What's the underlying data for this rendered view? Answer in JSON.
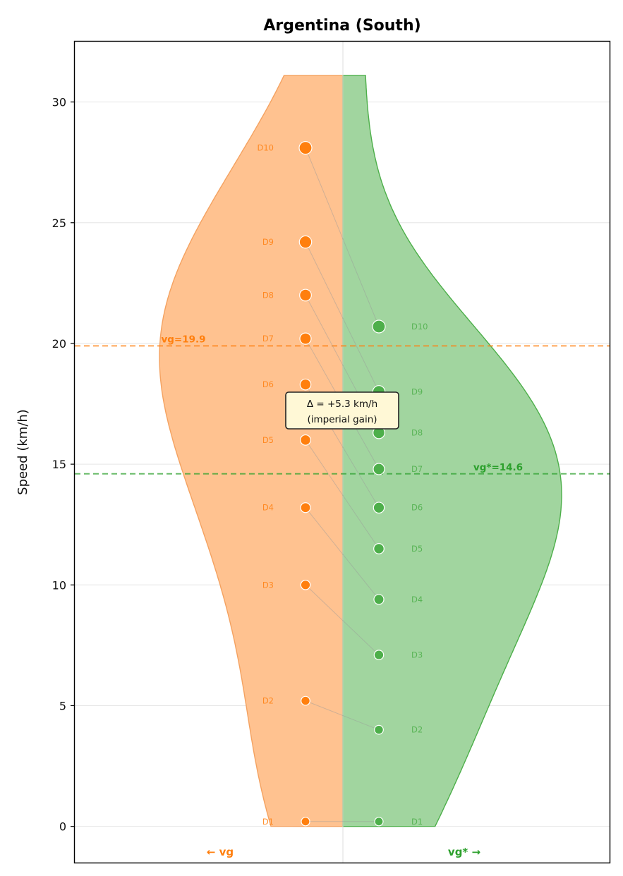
{
  "chart_data": {
    "type": "split-violin",
    "title": "Argentina (South)",
    "ylabel": "Speed (km/h)",
    "ylim": [
      -1.5,
      32.5
    ],
    "yticks": [
      0,
      5,
      10,
      15,
      20,
      25,
      30
    ],
    "grid": true,
    "colors": {
      "left": "#ff7f0e",
      "right": "#2ca02c",
      "left_fill": "#ffc290",
      "right_fill": "#a1d59f"
    },
    "left": {
      "name": "vg",
      "side_label": "← vg",
      "mean_label": "vg=19.9",
      "mean": 19.9,
      "deciles": [
        {
          "label": "D1",
          "value": 0.2
        },
        {
          "label": "D2",
          "value": 5.2
        },
        {
          "label": "D3",
          "value": 10.0
        },
        {
          "label": "D4",
          "value": 13.2
        },
        {
          "label": "D5",
          "value": 16.0
        },
        {
          "label": "D6",
          "value": 18.3
        },
        {
          "label": "D7",
          "value": 20.2
        },
        {
          "label": "D8",
          "value": 22.0
        },
        {
          "label": "D9",
          "value": 24.2
        },
        {
          "label": "D10",
          "value": 28.1
        }
      ]
    },
    "right": {
      "name": "vg*",
      "side_label": "vg* →",
      "mean_label": "vg*=14.6",
      "mean": 14.6,
      "deciles": [
        {
          "label": "D1",
          "value": 0.2
        },
        {
          "label": "D2",
          "value": 4.0
        },
        {
          "label": "D3",
          "value": 7.1
        },
        {
          "label": "D4",
          "value": 9.4
        },
        {
          "label": "D5",
          "value": 11.5
        },
        {
          "label": "D6",
          "value": 13.2
        },
        {
          "label": "D7",
          "value": 14.8
        },
        {
          "label": "D8",
          "value": 16.3
        },
        {
          "label": "D9",
          "value": 18.0
        },
        {
          "label": "D10",
          "value": 20.7
        }
      ]
    },
    "annotation": {
      "line1": "Δ = +5.3 km/h",
      "line2": "(imperial gain)"
    }
  }
}
